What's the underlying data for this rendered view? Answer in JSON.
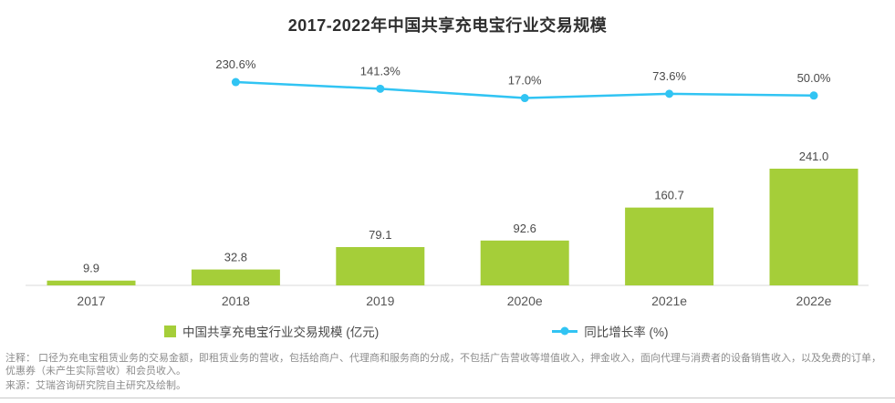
{
  "page": {
    "title": "2017-2022年中国共享充电宝行业交易规模",
    "note_label": "注释：",
    "note_text": " 口径为充电宝租赁业务的交易金额，即租赁业务的营收，包括给商户、代理商和服务商的分成，不包括广告营收等增值收入，押金收入，面向代理与消费者的设备销售收入，以及免费的订单，优惠券（未产生实际营收）和会员收入。",
    "source_text": "来源：艾瑞咨询研究院自主研究及绘制。"
  },
  "legend": {
    "bar_label": "中国共享充电宝行业交易规模 (亿元)",
    "line_label": "同比增长率 (%)"
  },
  "colors": {
    "bar": "#a5ce39",
    "line": "#31c4f3",
    "axis": "#d9d9d9",
    "value_label": "#4a4a4a",
    "note": "#8c8c8c"
  },
  "chart_data": {
    "type": "bar+line",
    "title": "2017-2022年中国共享充电宝行业交易规模",
    "categories": [
      "2017",
      "2018",
      "2019",
      "2020e",
      "2021e",
      "2022e"
    ],
    "series": [
      {
        "name": "中国共享充电宝行业交易规模 (亿元)",
        "type": "bar",
        "unit": "亿元",
        "values": [
          9.9,
          32.8,
          79.1,
          92.6,
          160.7,
          241.0
        ]
      },
      {
        "name": "同比增长率 (%)",
        "type": "line",
        "unit": "%",
        "values": [
          null,
          230.6,
          141.3,
          17.0,
          73.6,
          50.0
        ]
      }
    ],
    "bar_labels": [
      "9.9",
      "32.8",
      "79.1",
      "92.6",
      "160.7",
      "241.0"
    ],
    "line_labels": [
      null,
      "230.6%",
      "141.3%",
      "17.0%",
      "73.6%",
      "50.0%"
    ],
    "grid": false,
    "legend_position": "bottom",
    "value_axis_visible": false
  }
}
